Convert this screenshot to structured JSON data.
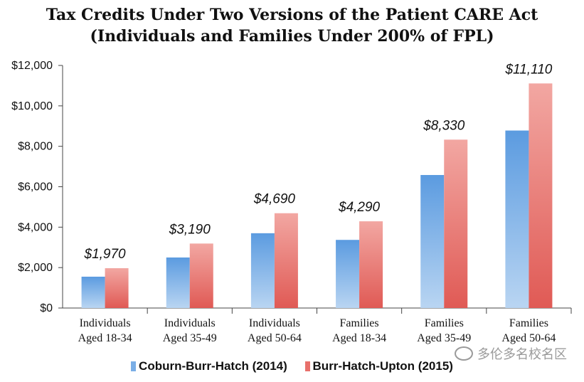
{
  "chart_data": {
    "type": "bar",
    "title": "Tax Credits Under Two Versions of the Patient CARE Act",
    "subtitle": "(Individuals and Families Under 200% of FPL)",
    "categories": [
      [
        "Individuals",
        "Aged 18-34"
      ],
      [
        "Individuals",
        "Aged 35-49"
      ],
      [
        "Individuals",
        "Aged 50-64"
      ],
      [
        "Families",
        "Aged 18-34"
      ],
      [
        "Families",
        "Aged 35-49"
      ],
      [
        "Families",
        "Aged 50-64"
      ]
    ],
    "series": [
      {
        "name": "Coburn-Burr-Hatch (2014)",
        "color": "#8db8e6",
        "values": [
          1550,
          2500,
          3700,
          3370,
          6580,
          8780
        ]
      },
      {
        "name": "Burr-Hatch-Upton (2015)",
        "color": "#ef8a85",
        "values": [
          1970,
          3190,
          4690,
          4290,
          8330,
          11110
        ]
      }
    ],
    "data_labels": [
      "$1,970",
      "$3,190",
      "$4,690",
      "$4,290",
      "$8,330",
      "$11,110"
    ],
    "ylim": [
      0,
      12000
    ],
    "yticks": [
      0,
      2000,
      4000,
      6000,
      8000,
      10000,
      12000
    ],
    "ytick_labels": [
      "$0",
      "$2,000",
      "$4,000",
      "$6,000",
      "$8,000",
      "$10,000",
      "$12,000"
    ],
    "grid": false,
    "legend_position": "bottom"
  },
  "watermark": "多伦多名校名区"
}
